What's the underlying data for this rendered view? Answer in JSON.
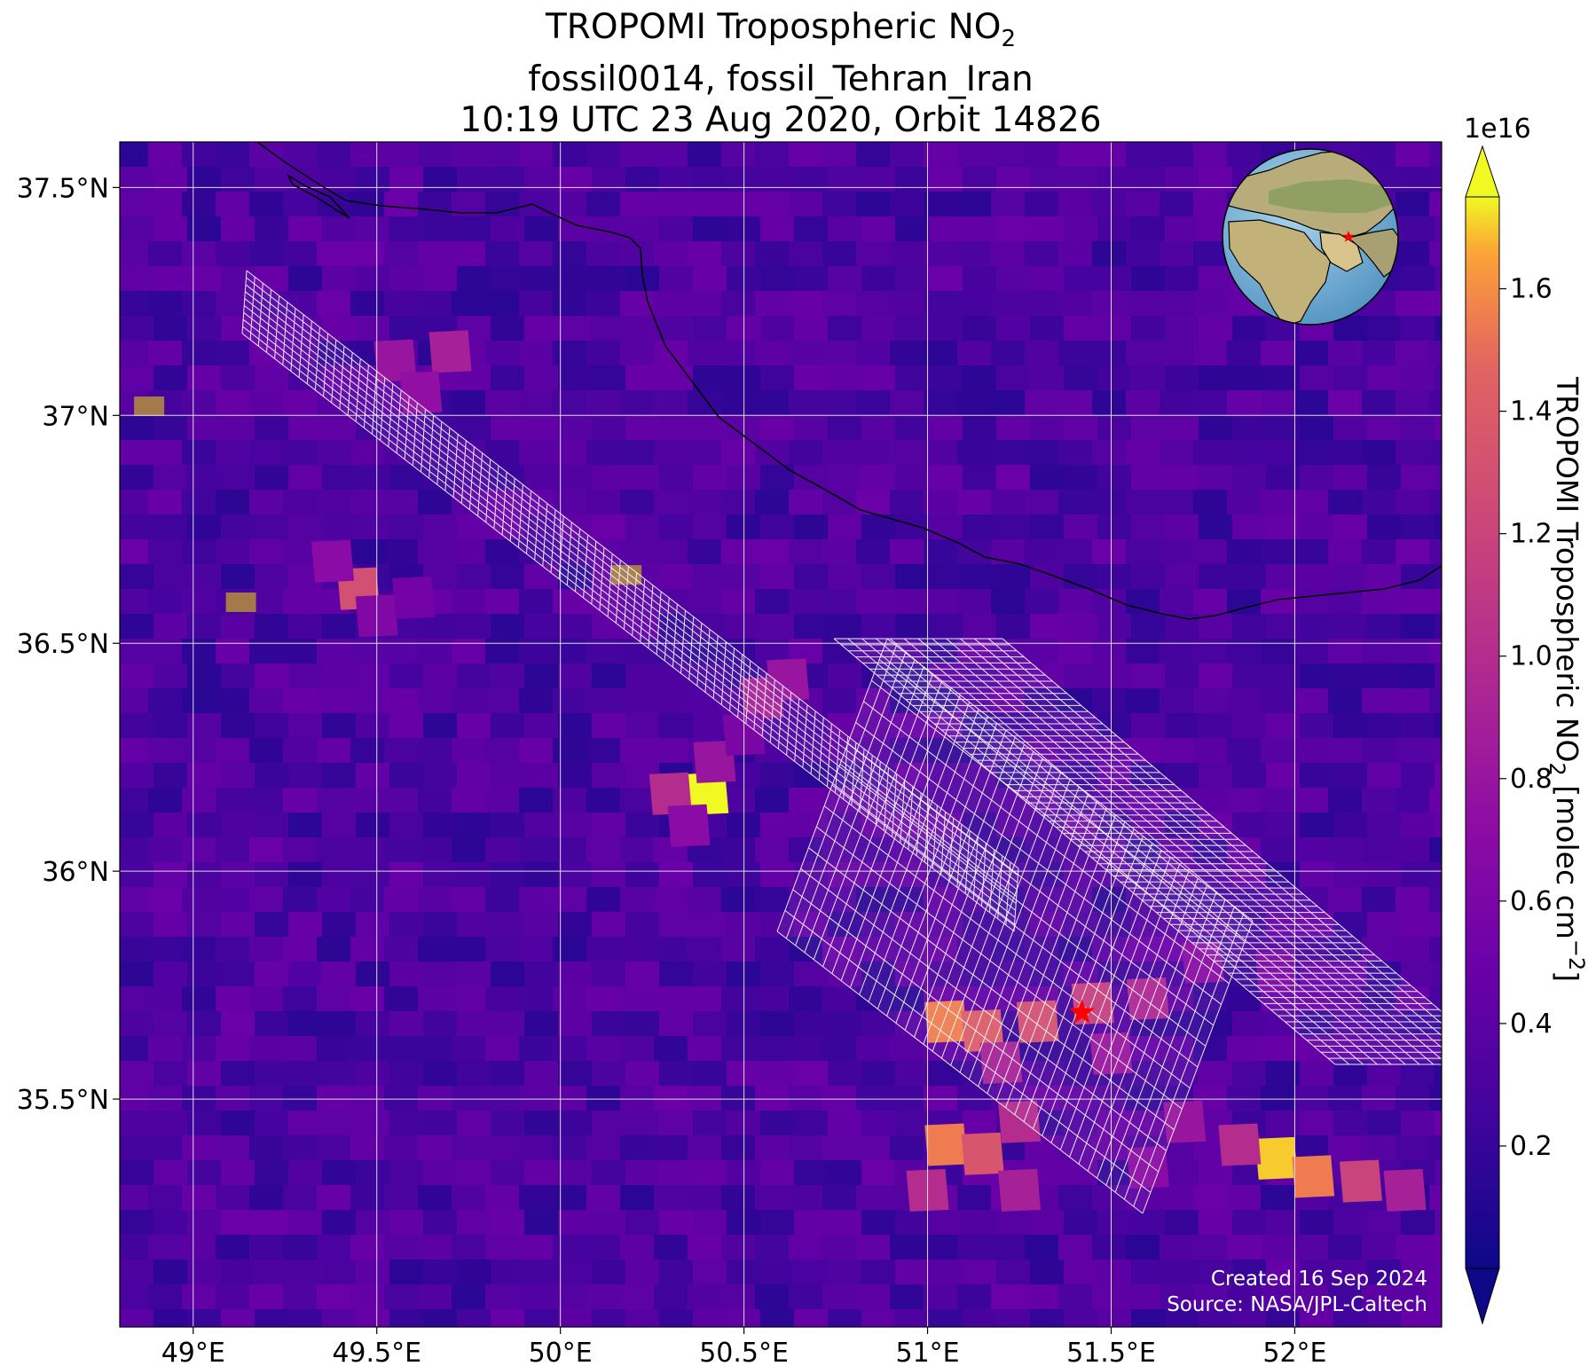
{
  "title": {
    "line1": "TROPOMI Tropospheric NO",
    "line1_sub": "2",
    "line2": "fossil0014, fossil_Tehran_Iran",
    "line3": "10:19 UTC 23 Aug 2020, Orbit 14826"
  },
  "axes": {
    "lon_ticks": [
      "49°E",
      "49.5°E",
      "50°E",
      "50.5°E",
      "51°E",
      "51.5°E",
      "52°E"
    ],
    "lat_ticks": [
      "37.5°N",
      "37°N",
      "36.5°N",
      "36°N",
      "35.5°N"
    ],
    "lon_range": [
      48.8,
      52.4
    ],
    "lat_range": [
      35.0,
      37.6
    ]
  },
  "colorbar": {
    "colormap": "plasma",
    "ticks": [
      "0.2",
      "0.4",
      "0.6",
      "0.8",
      "1.0",
      "1.2",
      "1.4",
      "1.6"
    ],
    "tick_values": [
      0.2,
      0.4,
      0.6,
      0.8,
      1.0,
      1.2,
      1.4,
      1.6
    ],
    "range": [
      0.0,
      1.75
    ],
    "multiplier": "1e16",
    "label_main": "TROPOMI Tropospheric NO",
    "label_sub": "2",
    "label_tail": " [molec cm",
    "label_sup": "−2",
    "label_close": "]",
    "extend": "both"
  },
  "target": {
    "name": "Tehran",
    "lon": 51.42,
    "lat": 35.69,
    "marker": "red-star"
  },
  "credit": {
    "line1": "Created 16 Sep 2024",
    "line2": "Source: NASA/JPL-Caltech"
  },
  "inset_globe": {
    "marker": "red-star",
    "highlight_color": "#ff0000"
  },
  "colors": {
    "grid": "#dcdcdc",
    "coast": "#000000",
    "footprint": "#ffffff",
    "marker": "#ff0000"
  }
}
